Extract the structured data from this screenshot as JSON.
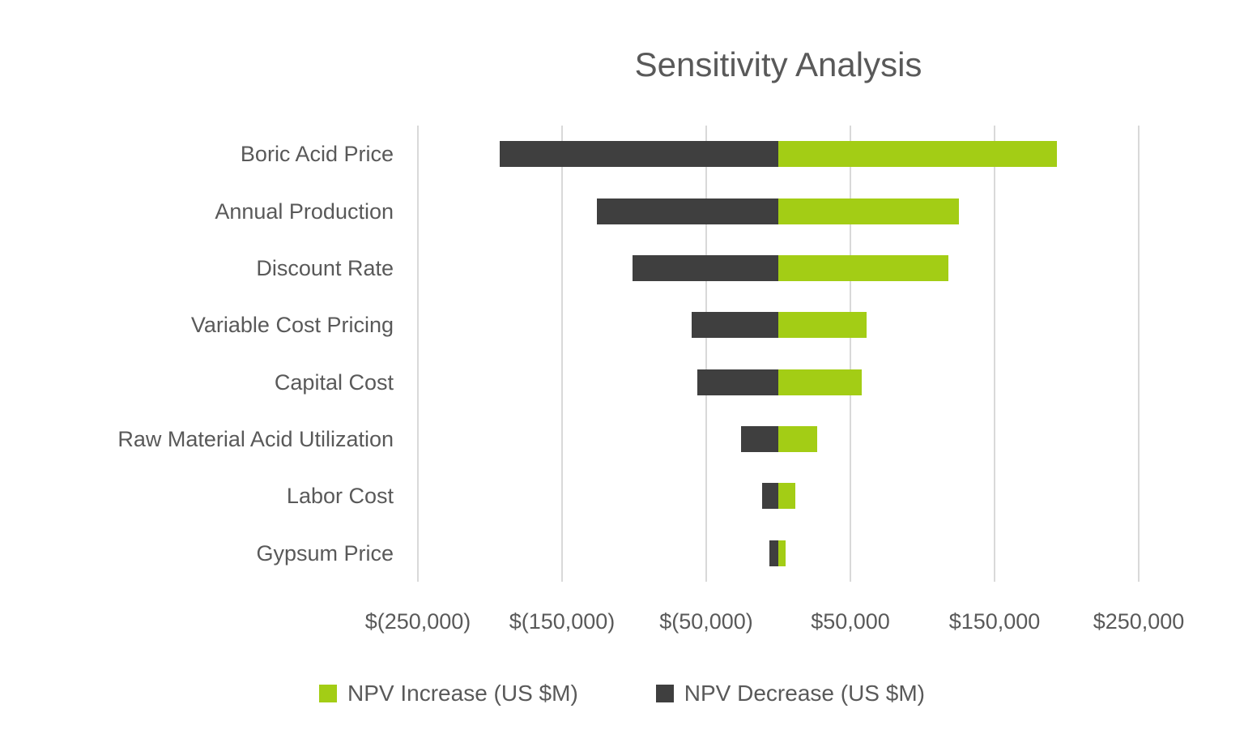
{
  "chart_data": {
    "type": "bar",
    "orientation": "horizontal",
    "title": "Sensitivity Analysis",
    "xlabel": "",
    "ylabel": "",
    "categories": [
      "Boric Acid Price",
      "Annual Production",
      "Discount Rate",
      "Variable Cost Pricing",
      "Capital Cost",
      "Raw Material Acid Utilization",
      "Labor Cost",
      "Gypsum Price"
    ],
    "series": [
      {
        "name": "NPV Increase (US $M)",
        "color": "#a3cd15",
        "values": [
          193000,
          125000,
          118000,
          61000,
          58000,
          27000,
          12000,
          5000
        ]
      },
      {
        "name": "NPV Decrease (US $M)",
        "color": "#3f3f3f",
        "values": [
          -193000,
          -126000,
          -101000,
          -60000,
          -56000,
          -26000,
          -11000,
          -6000
        ]
      }
    ],
    "xlim": [
      -250000,
      250000
    ],
    "x_ticks": [
      -250000,
      -150000,
      -50000,
      50000,
      150000,
      250000
    ],
    "x_tick_labels": [
      "$(250,000)",
      "$(150,000)",
      "$(50,000)",
      "$50,000",
      "$150,000",
      "$250,000"
    ],
    "grid": true,
    "legend_position": "bottom"
  },
  "colors": {
    "text": "#595959",
    "grid": "#d9d9d9",
    "background": "#ffffff"
  }
}
